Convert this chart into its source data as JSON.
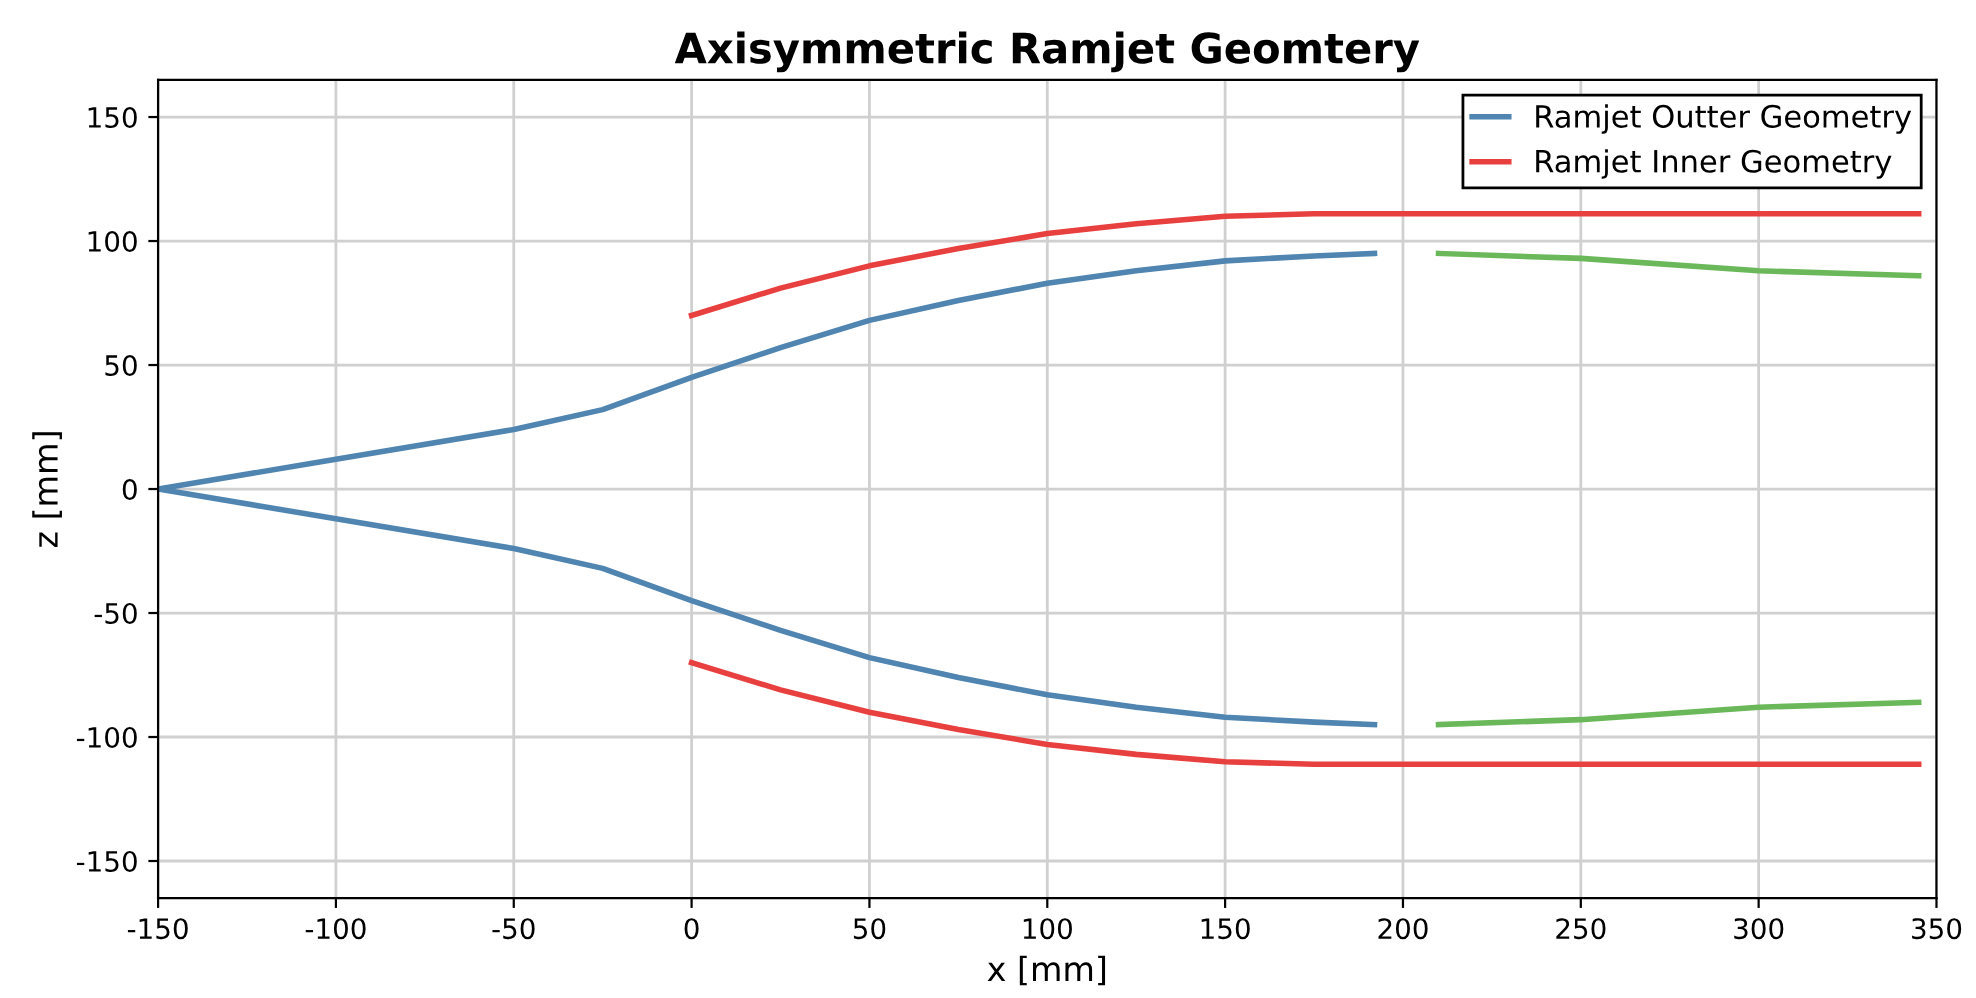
{
  "chart_data": {
    "type": "line",
    "title": "Axisymmetric Ramjet Geomtery",
    "xlabel": "x [mm]",
    "ylabel": "z [mm]",
    "series": [
      {
        "name": "Ramjet Outter Geometry",
        "color": "#4f85b0",
        "x": [
          192,
          175,
          150,
          125,
          100,
          75,
          50,
          25,
          0,
          -25,
          -50,
          -100,
          -150,
          -100,
          -50,
          -25,
          0,
          25,
          50,
          75,
          100,
          125,
          150,
          175,
          192
        ],
        "values": [
          95,
          94,
          92,
          88,
          83,
          76,
          68,
          57,
          45,
          32,
          24,
          12,
          0,
          -12,
          -24,
          -32,
          -45,
          -57,
          -68,
          -76,
          -83,
          -88,
          -92,
          -94,
          -95
        ]
      },
      {
        "name": "Ramjet Inner Geometry",
        "color": "#e8403f",
        "x": [
          0,
          25,
          50,
          75,
          100,
          125,
          150,
          175,
          200,
          250,
          300,
          345,
          null,
          0,
          25,
          50,
          75,
          100,
          125,
          150,
          175,
          200,
          250,
          300,
          345
        ],
        "values": [
          70,
          81,
          90,
          97,
          103,
          107,
          110,
          111,
          111,
          111,
          111,
          111,
          null,
          -70,
          -81,
          -90,
          -97,
          -103,
          -107,
          -110,
          -111,
          -111,
          -111,
          -111,
          -111
        ]
      },
      {
        "color": "#6ab85a",
        "x": [
          210,
          250,
          300,
          345,
          null,
          210,
          250,
          300,
          345
        ],
        "values": [
          95,
          93,
          88,
          86,
          null,
          -95,
          -93,
          -88,
          -86
        ]
      }
    ],
    "xlim": [
      -150,
      350
    ],
    "xticks": [
      -150,
      -100,
      -50,
      0,
      50,
      100,
      150,
      200,
      250,
      300,
      350
    ],
    "ylim": [
      -165,
      165
    ],
    "yticks": [
      -150,
      -100,
      -50,
      0,
      50,
      100,
      150
    ],
    "grid": true,
    "legend": "top right",
    "line_style": "solid",
    "marker": "none"
  }
}
